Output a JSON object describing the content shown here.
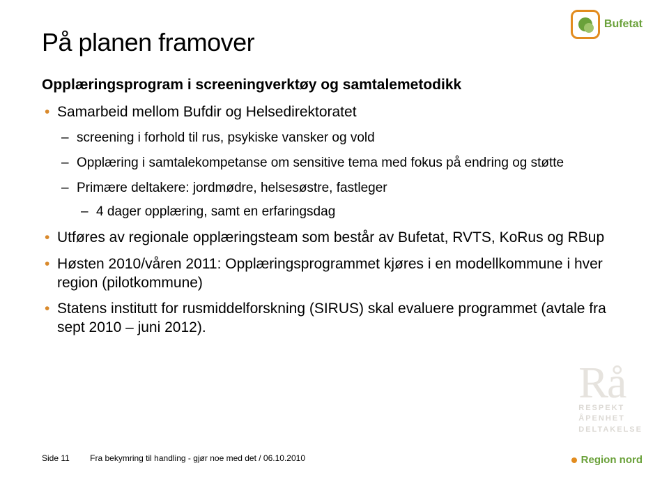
{
  "brand": {
    "bufetat_label": "Bufetat",
    "region_label": "Region nord"
  },
  "watermark": {
    "big": "Rå",
    "l1": "RESPEKT",
    "l2": "ÅPENHET",
    "l3": "DELTAKELSE"
  },
  "title": "På planen framover",
  "subtitle": "Opplæringsprogram i screeningverktøy og samtalemetodikk",
  "bullets": {
    "b1": {
      "text": "Samarbeid mellom Bufdir og Helsedirektoratet",
      "sub": {
        "s1": "screening i forhold til rus, psykiske vansker og vold",
        "s2": "Opplæring i samtalekompetanse om sensitive tema med fokus på endring og støtte",
        "s3": {
          "text": "Primære deltakere: jordmødre, helsesøstre, fastleger",
          "sub": {
            "t1": "4 dager opplæring, samt en erfaringsdag"
          }
        }
      }
    },
    "b2": "Utføres av regionale opplæringsteam som består av Bufetat, RVTS, KoRus og RBup",
    "b3": "Høsten 2010/våren 2011: Opplæringsprogrammet kjøres i en modellkommune i hver region (pilotkommune)",
    "b4": "Statens institutt for rusmiddelforskning (SIRUS) skal evaluere programmet (avtale fra sept 2010 – juni 2012)."
  },
  "footer": {
    "page": "Side 11",
    "note": "Fra bekymring til handling - gjør noe med det / 06.10.2010"
  }
}
